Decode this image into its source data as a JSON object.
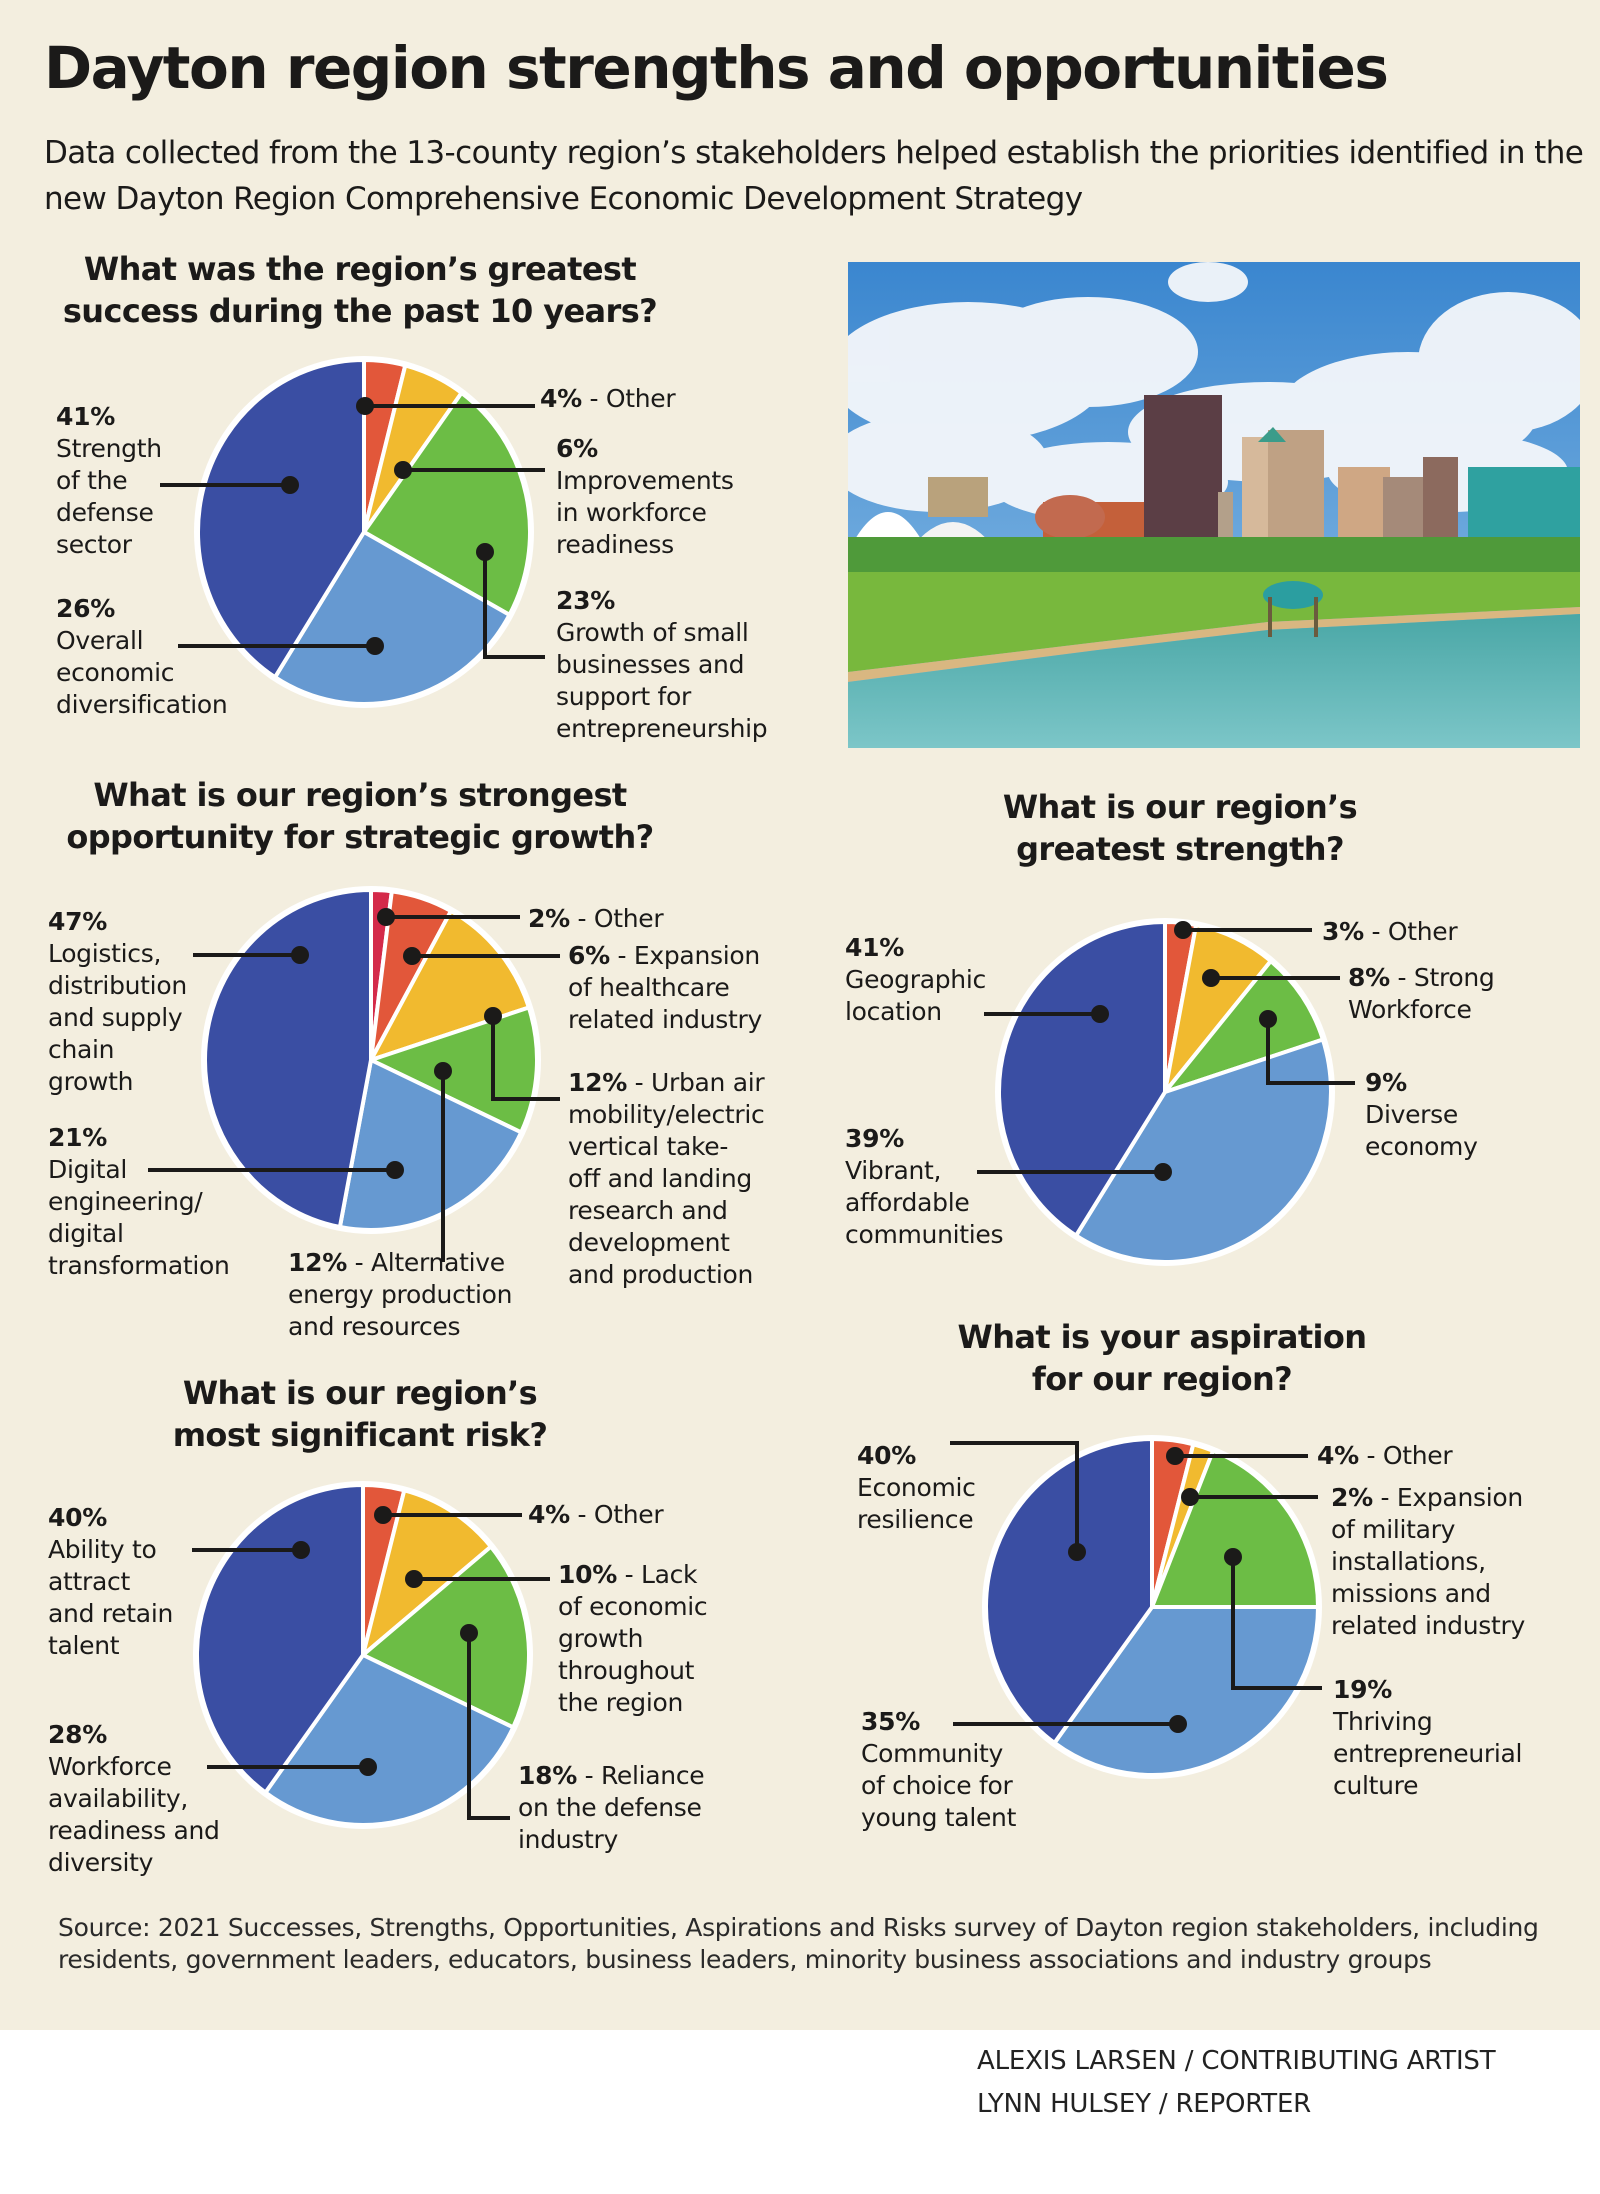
{
  "header": {
    "title": "Dayton region strengths and opportunities",
    "subtitle": "Data collected from the 13-county region’s stakeholders helped establish the priorities identified in the new Dayton Region Comprehensive Economic Development Strategy"
  },
  "photo": {
    "alt": "Dayton skyline over the river with park and gazebo"
  },
  "colors": {
    "navy": "#3a4ea3",
    "lightblue": "#6699d1",
    "green": "#6cbd45",
    "yellow": "#f1ba2f",
    "orange": "#e2573a",
    "red": "#d42a4a",
    "background": "#f3eedf"
  },
  "chart_data": [
    {
      "type": "pie",
      "title": "What was the region’s greatest success during the past 10 years?",
      "slices": [
        {
          "pct": "4%",
          "label": "Other",
          "value": 4,
          "color": "orange"
        },
        {
          "pct": "6%",
          "label": "Improvements in workforce readiness",
          "value": 6,
          "color": "yellow"
        },
        {
          "pct": "23%",
          "label": "Growth of small businesses and support for entrepreneurship",
          "value": 23,
          "color": "green"
        },
        {
          "pct": "26%",
          "label": "Overall economic diversification",
          "value": 26,
          "color": "lightblue"
        },
        {
          "pct": "41%",
          "label": "Strength of the defense sector",
          "value": 41,
          "color": "navy"
        }
      ]
    },
    {
      "type": "pie",
      "title": "What is our region’s strongest opportunity for strategic growth?",
      "slices": [
        {
          "pct": "2%",
          "label": "Other",
          "value": 2,
          "color": "red"
        },
        {
          "pct": "6%",
          "label": "Expansion of healthcare related industry",
          "value": 6,
          "color": "orange"
        },
        {
          "pct": "12%",
          "label": "Urban air mobility/electric vertical take-off and landing research and development and production",
          "value": 12,
          "color": "yellow"
        },
        {
          "pct": "12%",
          "label": "Alternative energy production and resources",
          "value": 12,
          "color": "green"
        },
        {
          "pct": "21%",
          "label": "Digital engineering/ digital transformation",
          "value": 21,
          "color": "lightblue"
        },
        {
          "pct": "47%",
          "label": "Logistics, distribution and supply chain growth",
          "value": 47,
          "color": "navy"
        }
      ]
    },
    {
      "type": "pie",
      "title": "What is our region’s most significant risk?",
      "slices": [
        {
          "pct": "4%",
          "label": "Other",
          "value": 4,
          "color": "orange"
        },
        {
          "pct": "10%",
          "label": "Lack of economic growth throughout the region",
          "value": 10,
          "color": "yellow"
        },
        {
          "pct": "18%",
          "label": "Reliance on the defense industry",
          "value": 18,
          "color": "green"
        },
        {
          "pct": "28%",
          "label": "Workforce availability, readiness and diversity",
          "value": 28,
          "color": "lightblue"
        },
        {
          "pct": "40%",
          "label": "Ability to attract and retain talent",
          "value": 40,
          "color": "navy"
        }
      ]
    },
    {
      "type": "pie",
      "title": "What is our region’s greatest strength?",
      "slices": [
        {
          "pct": "3%",
          "label": "Other",
          "value": 3,
          "color": "orange"
        },
        {
          "pct": "8%",
          "label": "Strong Workforce",
          "value": 8,
          "color": "yellow"
        },
        {
          "pct": "9%",
          "label": "Diverse economy",
          "value": 9,
          "color": "green"
        },
        {
          "pct": "39%",
          "label": "Vibrant, affordable communities",
          "value": 39,
          "color": "lightblue"
        },
        {
          "pct": "41%",
          "label": "Geographic location",
          "value": 41,
          "color": "navy"
        }
      ]
    },
    {
      "type": "pie",
      "title": "What is your aspiration for our region?",
      "slices": [
        {
          "pct": "4%",
          "label": "Other",
          "value": 4,
          "color": "orange"
        },
        {
          "pct": "2%",
          "label": "Expansion of military installations, missions and related industry",
          "value": 2,
          "color": "yellow"
        },
        {
          "pct": "19%",
          "label": "Thriving entrepreneurial culture",
          "value": 19,
          "color": "green"
        },
        {
          "pct": "35%",
          "label": "Community of choice for young talent",
          "value": 35,
          "color": "lightblue"
        },
        {
          "pct": "40%",
          "label": "Economic resilience",
          "value": 40,
          "color": "navy"
        }
      ]
    }
  ],
  "q": {
    "c1": [
      "What was the region’s greatest",
      "success during the past 10 years?"
    ],
    "c2": [
      "What is our region’s strongest",
      "opportunity for strategic growth?"
    ],
    "c3": [
      "What is our region’s",
      "most significant risk?"
    ],
    "c4": [
      "What is our region’s",
      "greatest strength?"
    ],
    "c5": [
      "What is your aspiration",
      "for our region?"
    ]
  },
  "labels": {
    "c1": {
      "s0": {
        "pct": "4%",
        "text": " - Other"
      },
      "s1": {
        "pct": "6%",
        "lines": [
          "Improvements",
          "in workforce",
          "readiness"
        ]
      },
      "s2": {
        "pct": "23%",
        "lines": [
          "Growth of small",
          "businesses and",
          "support for",
          "entrepreneurship"
        ]
      },
      "s3": {
        "pct": "26%",
        "lines": [
          "Overall",
          "economic",
          "diversification"
        ]
      },
      "s4": {
        "pct": "41%",
        "lines": [
          "Strength",
          "of the",
          "defense",
          "sector"
        ]
      }
    },
    "c2": {
      "s0": {
        "pct": "2%",
        "text": " - Other"
      },
      "s1": {
        "pct": "6%",
        "text": " - Expansion",
        "lines": [
          "of healthcare",
          "related industry"
        ]
      },
      "s2": {
        "pct": "12%",
        "text": " - Urban air",
        "lines": [
          "mobility/electric",
          "vertical take-",
          "off and landing",
          "research and",
          "development",
          "and production"
        ]
      },
      "s3": {
        "pct": "12%",
        "text": " - Alternative",
        "lines": [
          "energy production",
          "and resources"
        ]
      },
      "s4": {
        "pct": "21%",
        "lines": [
          "Digital",
          "engineering/",
          "digital",
          "transformation"
        ]
      },
      "s5": {
        "pct": "47%",
        "lines": [
          "Logistics,",
          "distribution",
          "and supply",
          "chain",
          "growth"
        ]
      }
    },
    "c3": {
      "s0": {
        "pct": "4%",
        "text": " - Other"
      },
      "s1": {
        "pct": "10%",
        "text": " - Lack",
        "lines": [
          "of economic",
          "growth",
          "throughout",
          "the region"
        ]
      },
      "s2": {
        "pct": "18%",
        "text": " - Reliance",
        "lines": [
          "on the defense",
          "industry"
        ]
      },
      "s3": {
        "pct": "28%",
        "lines": [
          "Workforce",
          "availability,",
          "readiness and",
          "diversity"
        ]
      },
      "s4": {
        "pct": "40%",
        "lines": [
          "Ability to",
          "attract",
          "and retain",
          "talent"
        ]
      }
    },
    "c4": {
      "s0": {
        "pct": "3%",
        "text": " - Other"
      },
      "s1": {
        "pct": "8%",
        "text": " - Strong",
        "lines": [
          "Workforce"
        ]
      },
      "s2": {
        "pct": "9%",
        "lines": [
          "Diverse",
          "economy"
        ]
      },
      "s3": {
        "pct": "39%",
        "lines": [
          "Vibrant,",
          "affordable",
          "communities"
        ]
      },
      "s4": {
        "pct": "41%",
        "lines": [
          "Geographic",
          "location"
        ]
      }
    },
    "c5": {
      "s0": {
        "pct": "4%",
        "text": " - Other"
      },
      "s1": {
        "pct": "2%",
        "text": " - Expansion",
        "lines": [
          "of military",
          "installations,",
          "missions and",
          "related industry"
        ]
      },
      "s2": {
        "pct": "19%",
        "lines": [
          "Thriving",
          "entrepreneurial",
          "culture"
        ]
      },
      "s3": {
        "pct": "35%",
        "lines": [
          "Community",
          "of choice for",
          "young talent"
        ]
      },
      "s4": {
        "pct": "40%",
        "lines": [
          "Economic",
          "resilience"
        ]
      }
    }
  },
  "footer": {
    "source": "Source: 2021 Successes, Strengths, Opportunities, Aspirations and Risks survey of Dayton region stakeholders, including residents, government leaders, educators, business leaders, minority business associations and industry groups",
    "credit_artist": "ALEXIS LARSEN / CONTRIBUTING ARTIST",
    "credit_reporter": "LYNN HULSEY / REPORTER"
  }
}
